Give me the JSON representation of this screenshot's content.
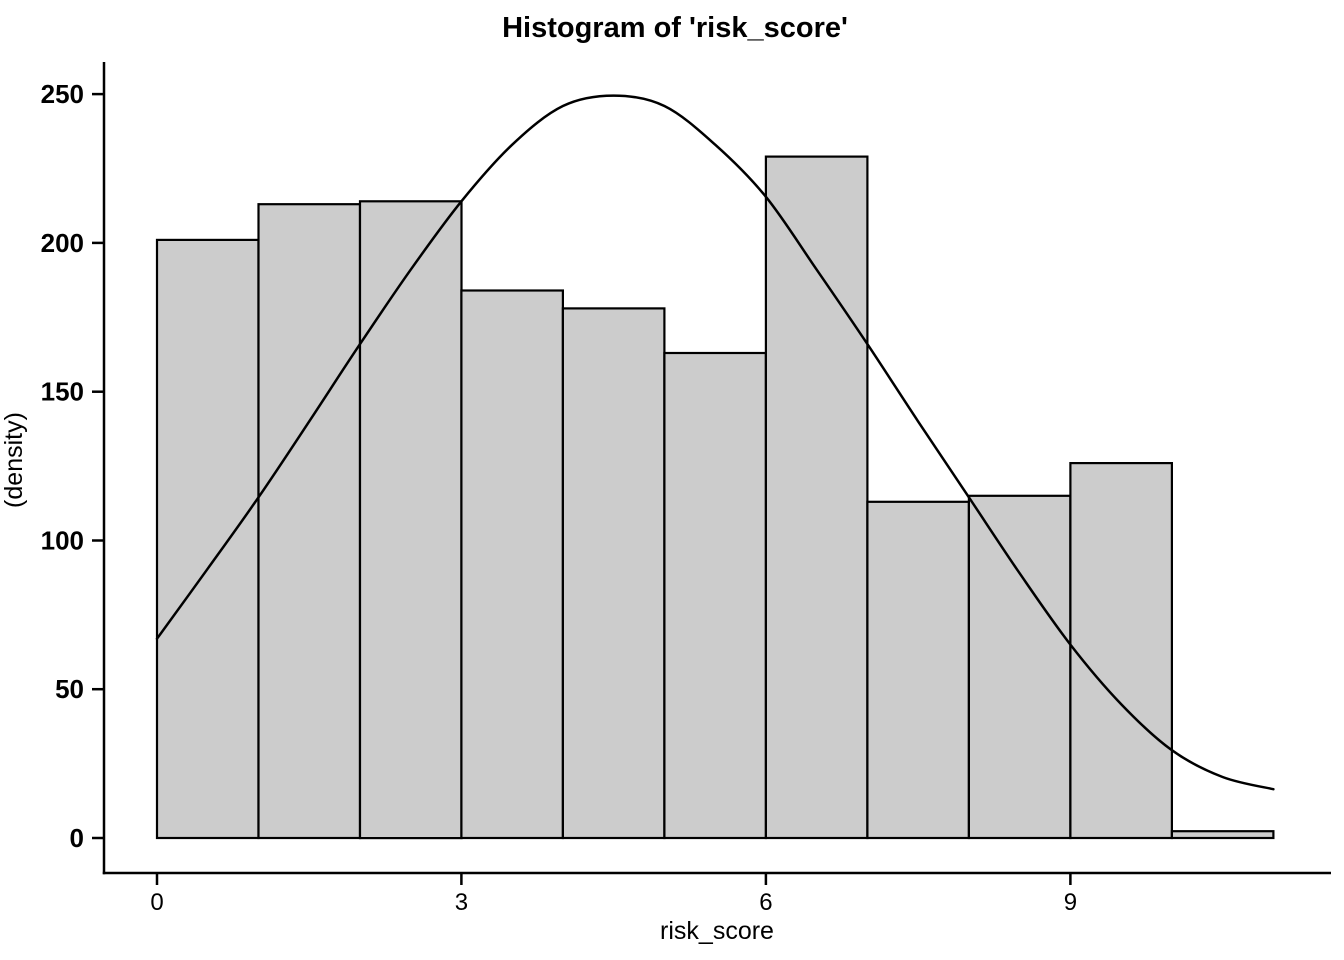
{
  "page": {
    "background": "#ffffff"
  },
  "chart_data": {
    "type": "bar",
    "variant": "histogram-with-density-curve",
    "title": "Histogram of 'risk_score'",
    "xlabel": "risk_score",
    "ylabel": "(density)",
    "grid": false,
    "legend": null,
    "bin_start": 0,
    "bin_width": 1,
    "bin_edges": [
      0,
      1,
      2,
      3,
      4,
      5,
      6,
      7,
      8,
      9,
      10,
      11
    ],
    "bar_values": [
      201,
      213,
      214,
      184,
      178,
      163,
      229,
      113,
      115,
      126,
      2.3
    ],
    "curve": {
      "name": "density-curve",
      "points": [
        [
          0,
          67
        ],
        [
          0.5,
          90.5
        ],
        [
          1,
          114.5
        ],
        [
          1.5,
          140
        ],
        [
          2,
          166
        ],
        [
          2.5,
          191
        ],
        [
          3,
          214
        ],
        [
          3.5,
          233
        ],
        [
          4,
          246
        ],
        [
          4.5,
          249.5
        ],
        [
          5,
          246
        ],
        [
          5.5,
          233
        ],
        [
          6,
          215.5
        ],
        [
          6.5,
          191
        ],
        [
          7,
          166
        ],
        [
          7.5,
          140
        ],
        [
          8,
          114.5
        ],
        [
          8.5,
          89
        ],
        [
          9,
          65
        ],
        [
          9.5,
          45
        ],
        [
          10,
          29.5
        ],
        [
          10.5,
          20.5
        ],
        [
          11,
          16.4
        ]
      ]
    },
    "x_ticks": {
      "values": [
        0,
        3,
        6,
        9
      ],
      "labels": [
        "0",
        "3",
        "6",
        "9"
      ]
    },
    "y_ticks": {
      "values": [
        0,
        50,
        100,
        150,
        200,
        250
      ],
      "labels": [
        "0",
        "50",
        "100",
        "150",
        "200",
        "250"
      ]
    },
    "xlim": [
      -0.522,
      11.568
    ],
    "ylim": [
      -11.76,
      260.8
    ],
    "colors": {
      "bar_fill": "#cccccc",
      "bar_edge": "#000000",
      "curve": "#000000",
      "axis": "#000000",
      "text": "#000000",
      "background": "#ffffff"
    }
  }
}
